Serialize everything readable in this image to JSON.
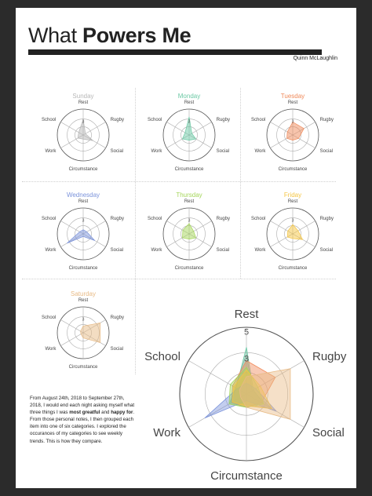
{
  "poster": {
    "title_light": "What",
    "title_bold": "Powers Me",
    "author": "Quinn McLaughlin",
    "note": {
      "line1_pre": "From August 24th, 2018 to September 27th, 2018, I would end each night asking myself what three things I was ",
      "line1_bold1": "most greatful",
      "line1_mid": " and ",
      "line1_bold2": "happy for",
      "line1_post": ".",
      "line2": "From those personal notes, I then grouped each item into one of six categories. I explored the occurances of my categories to see weekly trends. This is how they compare."
    }
  },
  "chart_data": [
    {
      "type": "radar",
      "title": "Sunday",
      "color": "#b8b8b8",
      "categories": [
        "Rest",
        "Rugby",
        "Social",
        "Circumstance",
        "Work",
        "School"
      ],
      "values": [
        3,
        0.5,
        2.2,
        0.8,
        1.2,
        1.0
      ],
      "rlim": [
        0,
        5
      ],
      "ticks": [
        "3"
      ]
    },
    {
      "type": "radar",
      "title": "Monday",
      "color": "#6cc9a5",
      "categories": [
        "Rest",
        "Rugby",
        "Social",
        "Circumstance",
        "Work",
        "School"
      ],
      "values": [
        3.5,
        0.6,
        1.5,
        1.0,
        1.5,
        0.9
      ],
      "rlim": [
        0,
        5
      ],
      "ticks": [
        "3"
      ]
    },
    {
      "type": "radar",
      "title": "Tuesday",
      "color": "#f08a5a",
      "categories": [
        "Rest",
        "Rugby",
        "Social",
        "Circumstance",
        "Work",
        "School"
      ],
      "values": [
        2.5,
        2.5,
        1.3,
        1.0,
        1.3,
        1.2
      ],
      "rlim": [
        0,
        5
      ],
      "ticks": [
        "3"
      ]
    },
    {
      "type": "radar",
      "title": "Wednesday",
      "color": "#7b93db",
      "categories": [
        "Rest",
        "Rugby",
        "Social",
        "Circumstance",
        "Work",
        "School"
      ],
      "values": [
        0.8,
        0.8,
        2.6,
        0.5,
        3.6,
        0.8
      ],
      "rlim": [
        0,
        5
      ],
      "ticks": [
        "3"
      ]
    },
    {
      "type": "radar",
      "title": "Thursday",
      "color": "#a5d65a",
      "categories": [
        "Rest",
        "Rugby",
        "Social",
        "Circumstance",
        "Work",
        "School"
      ],
      "values": [
        2.0,
        1.0,
        1.5,
        1.0,
        1.5,
        1.4
      ],
      "rlim": [
        0,
        5
      ],
      "ticks": [
        "3"
      ]
    },
    {
      "type": "radar",
      "title": "Friday",
      "color": "#f5c542",
      "categories": [
        "Rest",
        "Rugby",
        "Social",
        "Circumstance",
        "Work",
        "School"
      ],
      "values": [
        1.8,
        1.2,
        2.2,
        0.9,
        1.2,
        1.1
      ],
      "rlim": [
        0,
        5
      ],
      "ticks": [
        "3"
      ]
    },
    {
      "type": "radar",
      "title": "Saturday",
      "color": "#e8bb86",
      "categories": [
        "Rest",
        "Rugby",
        "Social",
        "Circumstance",
        "Work",
        "School"
      ],
      "values": [
        1.3,
        3.8,
        3.8,
        1.0,
        0.5,
        0.6
      ],
      "rlim": [
        0,
        5
      ],
      "ticks": [
        "3"
      ]
    },
    {
      "type": "radar",
      "title": "",
      "categories": [
        "Rest",
        "Rugby",
        "Social",
        "Circumstance",
        "Work",
        "School"
      ],
      "rlim": [
        0,
        5
      ],
      "ticks": [
        "3",
        "5"
      ],
      "overlay_of": [
        "Sunday",
        "Monday",
        "Tuesday",
        "Wednesday",
        "Thursday",
        "Friday",
        "Saturday"
      ]
    }
  ]
}
